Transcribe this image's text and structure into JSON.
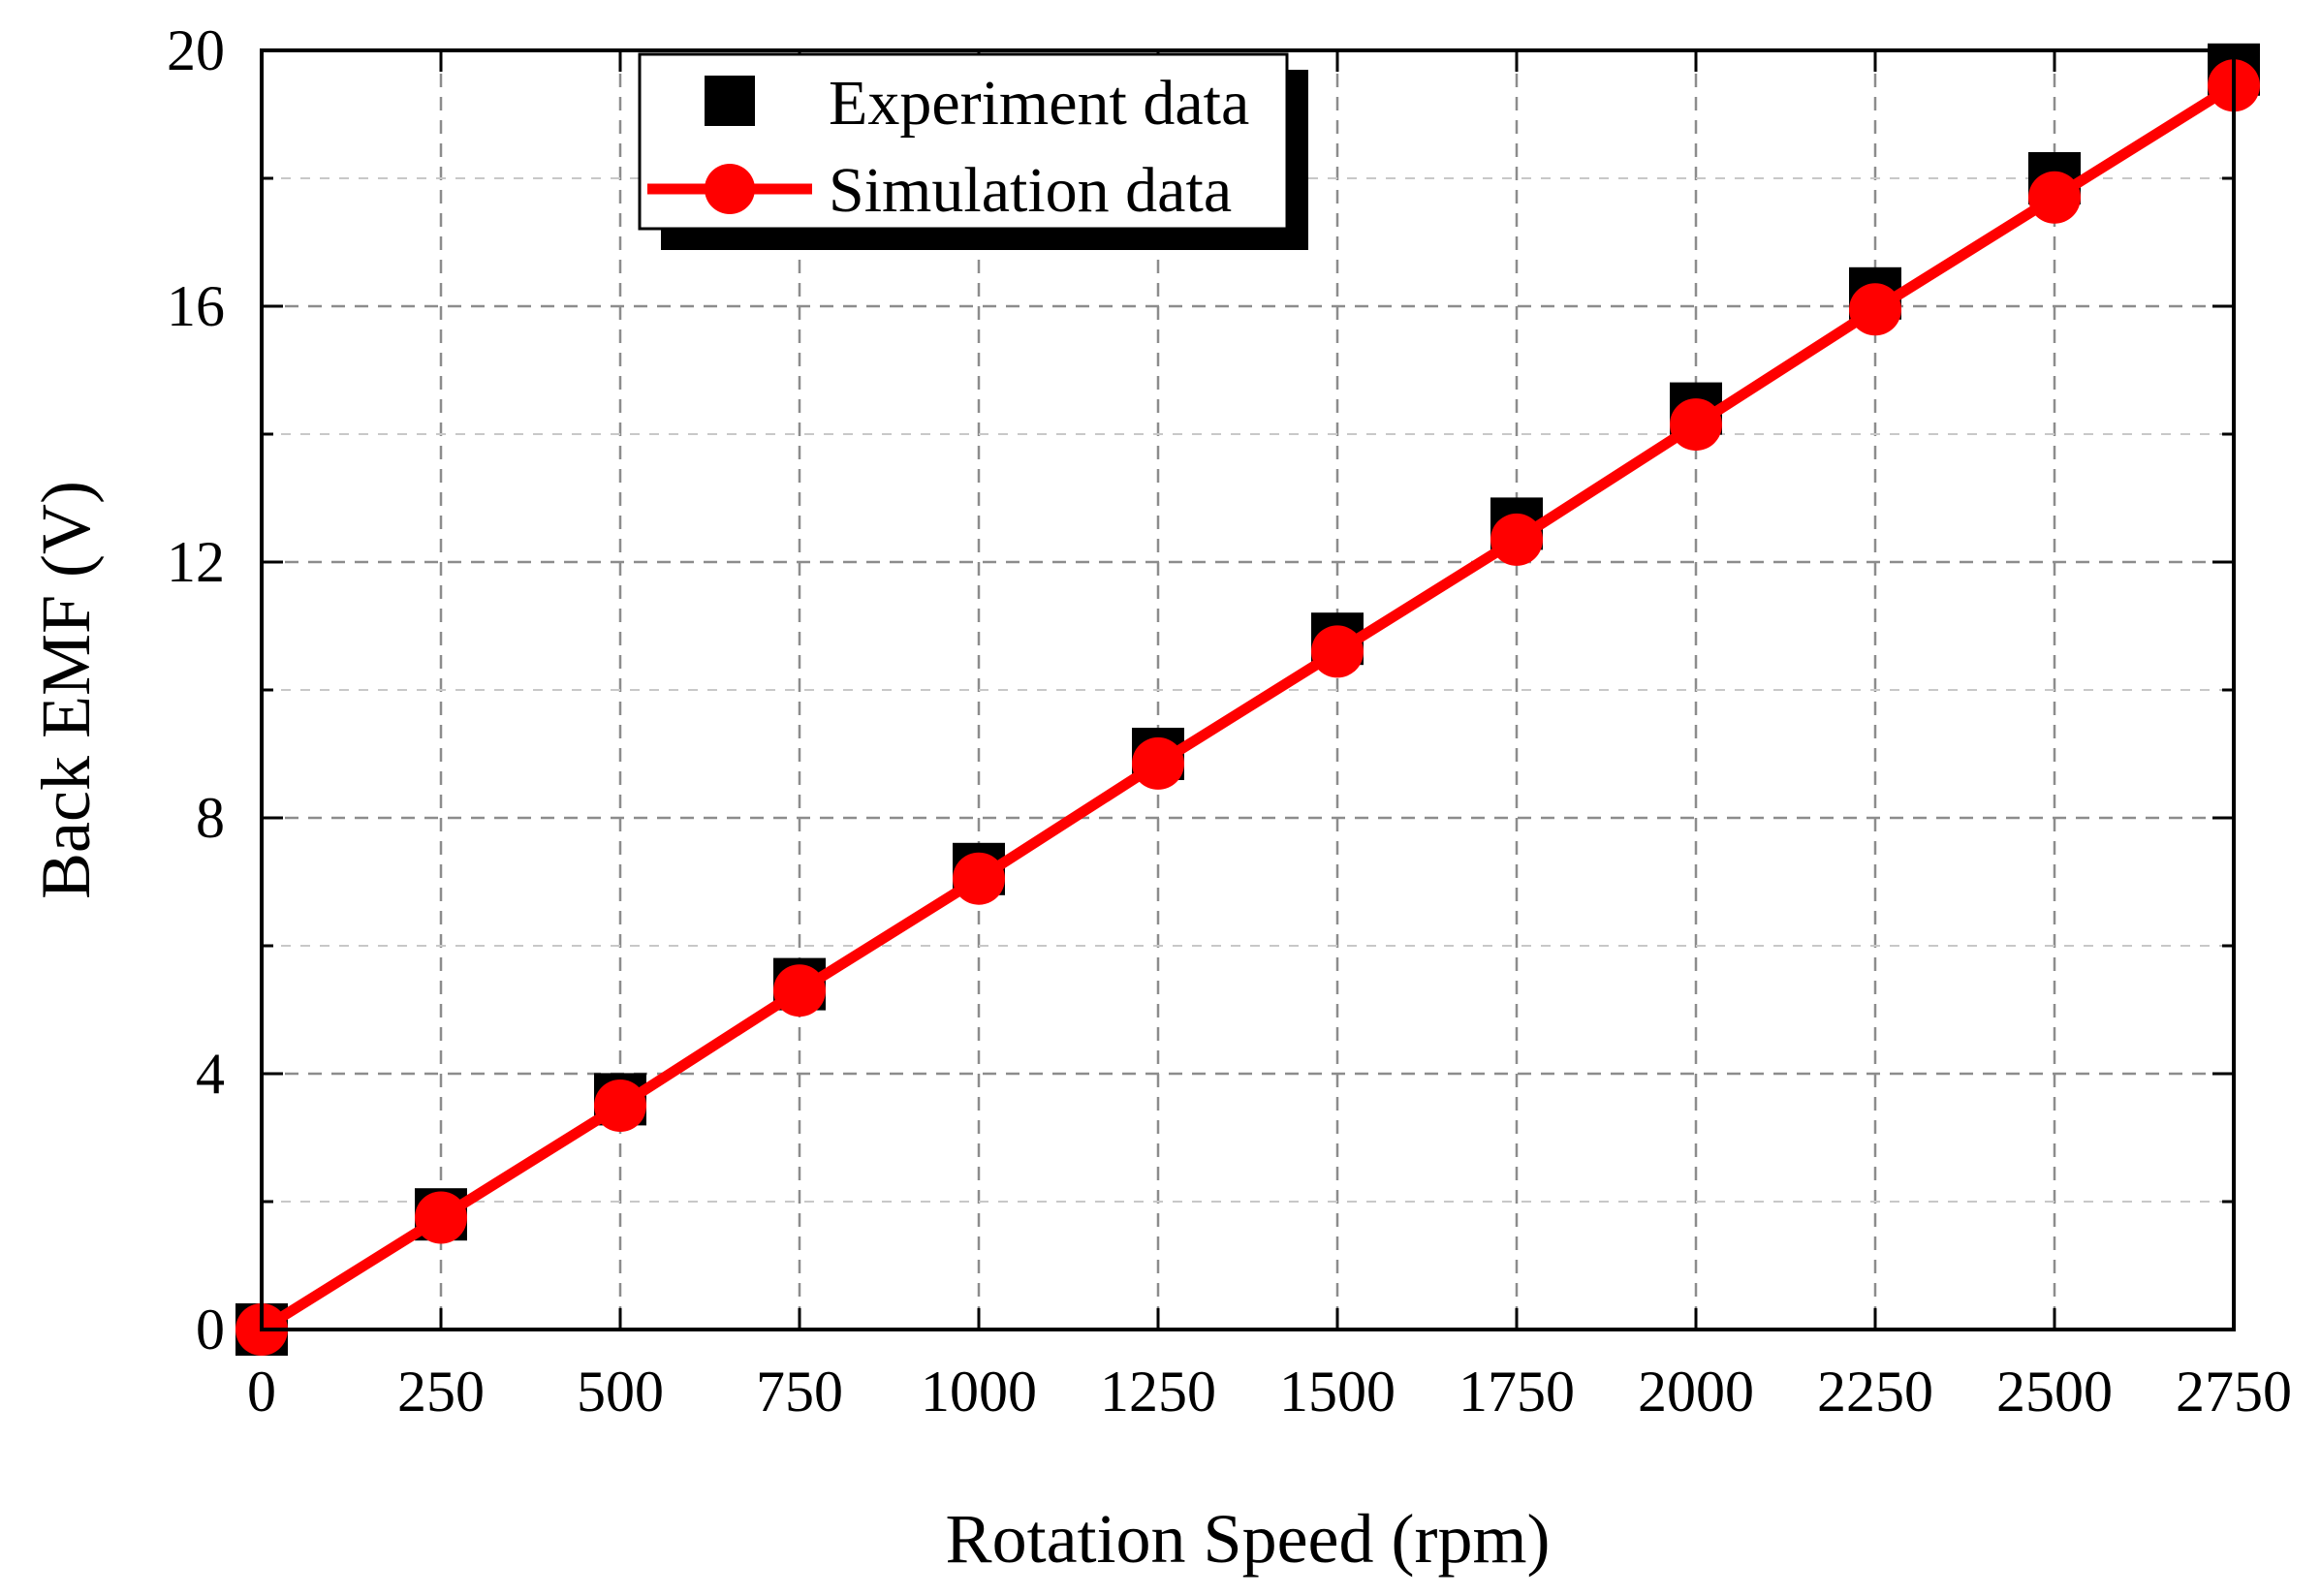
{
  "chart_data": {
    "type": "line",
    "title": "",
    "xlabel": "Rotation Speed (rpm)",
    "ylabel": "Back EMF (V)",
    "xlim": [
      0,
      2750
    ],
    "ylim": [
      0,
      20
    ],
    "x_ticks": [
      0,
      250,
      500,
      750,
      1000,
      1250,
      1500,
      1750,
      2000,
      2250,
      2500,
      2750
    ],
    "y_ticks": [
      0,
      4,
      8,
      12,
      16,
      20
    ],
    "grid": true,
    "legend_position": "top-left",
    "series": [
      {
        "name": "Experiment data",
        "marker": "square",
        "line": false,
        "color": "#000000",
        "x": [
          0,
          250,
          500,
          750,
          1000,
          1250,
          1500,
          1750,
          2000,
          2250,
          2500,
          2750
        ],
        "values": [
          0.0,
          1.8,
          3.6,
          5.4,
          7.2,
          9.0,
          10.8,
          12.6,
          14.4,
          16.2,
          18.0,
          19.7
        ]
      },
      {
        "name": "Simulation data",
        "marker": "circle",
        "line": true,
        "color": "#ff0000",
        "x": [
          0,
          250,
          500,
          750,
          1000,
          1250,
          1500,
          1750,
          2000,
          2250,
          2500,
          2750
        ],
        "values": [
          0.0,
          1.75,
          3.5,
          5.3,
          7.05,
          8.85,
          10.6,
          12.35,
          14.15,
          15.95,
          17.7,
          19.45
        ]
      }
    ]
  }
}
